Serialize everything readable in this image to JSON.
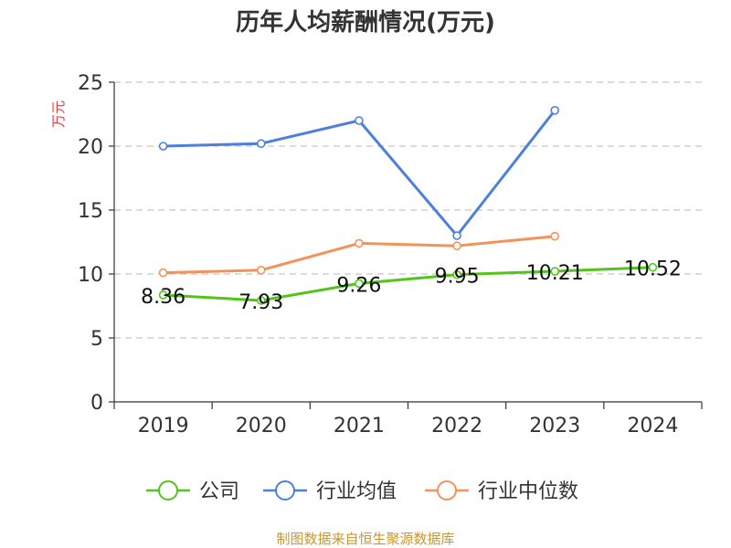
{
  "chart_data": {
    "type": "line",
    "title": "历年人均薪酬情况(万元)",
    "ylabel": "万元",
    "xlabel": "",
    "categories": [
      "2019",
      "2020",
      "2021",
      "2022",
      "2023",
      "2024"
    ],
    "ylim": [
      0,
      25
    ],
    "yticks": [
      0,
      5,
      10,
      15,
      20,
      25
    ],
    "grid": true,
    "legend_position": "bottom",
    "series": [
      {
        "name": "公司",
        "color": "#52c41a",
        "values": [
          8.36,
          7.93,
          9.26,
          9.95,
          10.21,
          10.52
        ],
        "labels": [
          "8.36",
          "7.93",
          "9.26",
          "9.95",
          "10.21",
          "10.52"
        ]
      },
      {
        "name": "行业均值",
        "color": "#4e7fdc",
        "values": [
          20.0,
          20.2,
          22.0,
          13.0,
          22.8,
          null
        ]
      },
      {
        "name": "行业中位数",
        "color": "#f4925a",
        "values": [
          10.1,
          10.3,
          12.4,
          12.2,
          12.95,
          null
        ]
      }
    ]
  },
  "source_text": "制图数据来自恒生聚源数据库",
  "colors": {
    "ylabel": "#e03c3c",
    "source": "#c8962d",
    "grid": "#c8c8c8",
    "axis": "#333333"
  }
}
